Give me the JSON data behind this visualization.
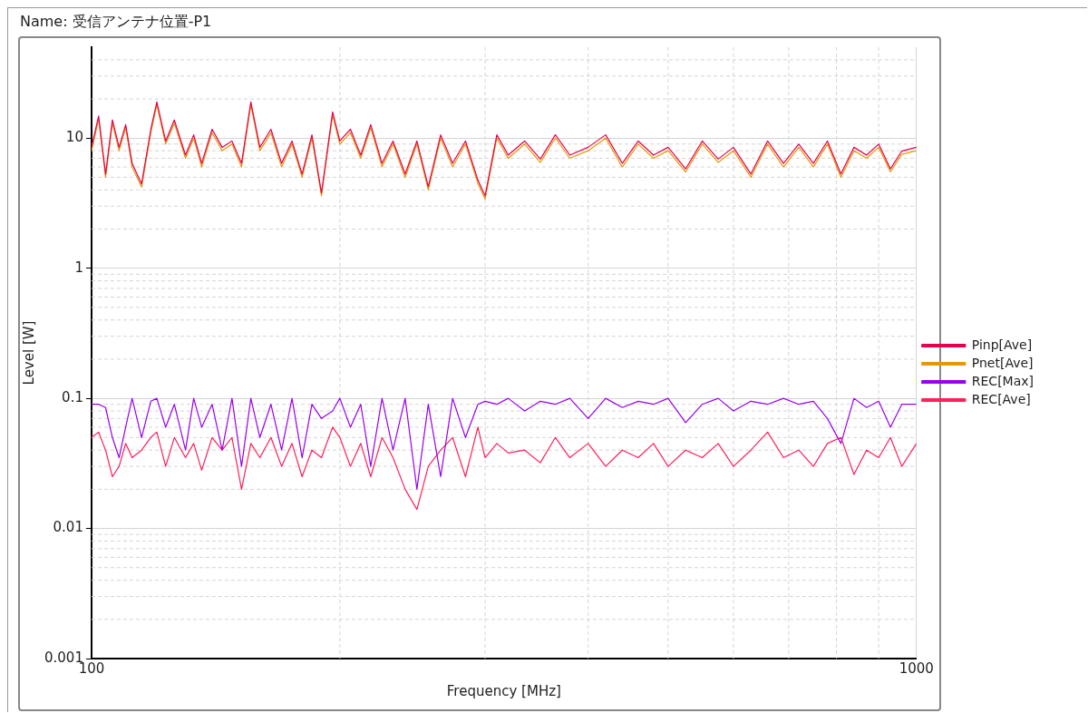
{
  "chart_data": {
    "type": "line",
    "title": "Name: 受信アンテナ位置-P1",
    "xlabel": "Frequency [MHz]",
    "ylabel": "Level [W]",
    "x": [
      100,
      102,
      104,
      106,
      108,
      110,
      112,
      115,
      118,
      120,
      123,
      126,
      130,
      133,
      136,
      140,
      144,
      148,
      152,
      156,
      160,
      165,
      170,
      175,
      180,
      185,
      190,
      196,
      200,
      206,
      212,
      218,
      225,
      232,
      240,
      248,
      256,
      265,
      274,
      284,
      294,
      300,
      310,
      320,
      335,
      350,
      365,
      380,
      400,
      420,
      440,
      460,
      480,
      500,
      525,
      550,
      575,
      600,
      630,
      660,
      690,
      720,
      750,
      780,
      810,
      840,
      870,
      900,
      930,
      960,
      1000
    ],
    "series": [
      {
        "name": "Pinp[Ave]",
        "color": "#e6004c",
        "values": [
          8.5,
          14.8,
          5.3,
          13.8,
          8.5,
          12.7,
          6.4,
          4.45,
          11.7,
          19,
          9.5,
          13.8,
          7.4,
          10.6,
          6.4,
          11.7,
          8.5,
          9.5,
          6.4,
          19,
          8.5,
          11.7,
          6.4,
          9.5,
          5.3,
          10.6,
          3.8,
          15.9,
          9.5,
          11.7,
          7.4,
          12.7,
          6.4,
          9.5,
          5.3,
          9.5,
          4.24,
          10.6,
          6.4,
          9.5,
          4.77,
          3.6,
          10.6,
          7.4,
          9.5,
          6.9,
          10.6,
          7.4,
          8.5,
          10.6,
          6.4,
          9.5,
          7.4,
          8.5,
          5.8,
          9.5,
          6.9,
          8.5,
          5.3,
          9.5,
          6.4,
          9,
          6.4,
          9.5,
          5.3,
          8.5,
          7.4,
          9,
          5.8,
          7.95,
          8.5
        ]
      },
      {
        "name": "Pnet[Ave]",
        "color": "#e8960a",
        "values": [
          8,
          14,
          5,
          13,
          8,
          12,
          6,
          4.2,
          11,
          18,
          9,
          13,
          7,
          10,
          6,
          11,
          8,
          9,
          6,
          18,
          8,
          11,
          6,
          9,
          5,
          10,
          3.6,
          15,
          9,
          11,
          7,
          12,
          6,
          9,
          5,
          9,
          4,
          10,
          6,
          9,
          4.5,
          3.4,
          10,
          7,
          9,
          6.5,
          10,
          7,
          8,
          10,
          6,
          9,
          7,
          8,
          5.5,
          9,
          6.5,
          8,
          5,
          9,
          6,
          8.5,
          6,
          9,
          5,
          8,
          7,
          8.5,
          5.5,
          7.5,
          8
        ]
      },
      {
        "name": "REC[Max]",
        "color": "#9900ee",
        "values": [
          0.09,
          0.09,
          0.085,
          0.05,
          0.035,
          0.06,
          0.1,
          0.05,
          0.095,
          0.1,
          0.06,
          0.09,
          0.04,
          0.1,
          0.06,
          0.09,
          0.04,
          0.1,
          0.03,
          0.1,
          0.05,
          0.09,
          0.04,
          0.1,
          0.035,
          0.09,
          0.07,
          0.08,
          0.1,
          0.06,
          0.09,
          0.03,
          0.1,
          0.04,
          0.1,
          0.02,
          0.09,
          0.025,
          0.1,
          0.05,
          0.09,
          0.095,
          0.09,
          0.1,
          0.08,
          0.095,
          0.09,
          0.1,
          0.07,
          0.1,
          0.085,
          0.095,
          0.09,
          0.1,
          0.065,
          0.09,
          0.1,
          0.08,
          0.095,
          0.09,
          0.1,
          0.09,
          0.095,
          0.07,
          0.045,
          0.1,
          0.085,
          0.095,
          0.06,
          0.09,
          0.09
        ]
      },
      {
        "name": "REC[Ave]",
        "color": "#ff1f5a",
        "values": [
          0.05,
          0.055,
          0.04,
          0.025,
          0.03,
          0.045,
          0.035,
          0.04,
          0.05,
          0.055,
          0.03,
          0.05,
          0.035,
          0.045,
          0.028,
          0.05,
          0.04,
          0.05,
          0.02,
          0.045,
          0.035,
          0.05,
          0.03,
          0.045,
          0.025,
          0.04,
          0.035,
          0.06,
          0.05,
          0.03,
          0.045,
          0.025,
          0.05,
          0.035,
          0.02,
          0.014,
          0.03,
          0.04,
          0.05,
          0.025,
          0.06,
          0.035,
          0.045,
          0.038,
          0.04,
          0.032,
          0.05,
          0.035,
          0.045,
          0.03,
          0.04,
          0.035,
          0.045,
          0.03,
          0.04,
          0.035,
          0.045,
          0.03,
          0.04,
          0.055,
          0.035,
          0.04,
          0.03,
          0.045,
          0.05,
          0.026,
          0.04,
          0.035,
          0.05,
          0.03,
          0.045
        ]
      }
    ],
    "log": "xy",
    "xlim": [
      100,
      1000
    ],
    "xticks": [
      100,
      1000
    ],
    "ylim": [
      0.001,
      50
    ],
    "yticks": [
      0.001,
      0.01,
      0.1,
      1,
      10
    ],
    "grid": true,
    "legend": "right",
    "marker": "none",
    "line_style": "solid"
  }
}
